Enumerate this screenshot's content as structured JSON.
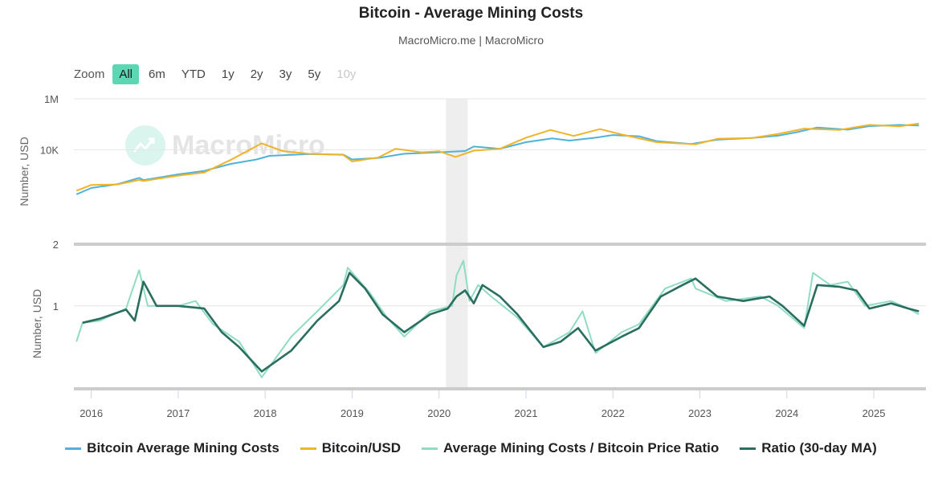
{
  "title": "Bitcoin - Average Mining Costs",
  "subtitle": "MacroMicro.me | MacroMicro",
  "watermark": "MacroMicro",
  "zoom": {
    "label": "Zoom",
    "buttons": [
      {
        "label": "All",
        "state": "active"
      },
      {
        "label": "6m",
        "state": "normal"
      },
      {
        "label": "YTD",
        "state": "normal"
      },
      {
        "label": "1y",
        "state": "normal"
      },
      {
        "label": "2y",
        "state": "normal"
      },
      {
        "label": "3y",
        "state": "normal"
      },
      {
        "label": "5y",
        "state": "normal"
      },
      {
        "label": "10y",
        "state": "disabled"
      }
    ]
  },
  "chart_data": {
    "type": "line",
    "x_ticks": [
      "2016",
      "2017",
      "2018",
      "2019",
      "2020",
      "2021",
      "2022",
      "2023",
      "2024",
      "2025"
    ],
    "highlight_band": {
      "x_start": 2020.08,
      "x_end": 2020.33
    },
    "panels": [
      {
        "ylabel": "Number, USD",
        "scale": "log",
        "ylim": [
          2,
          1000000
        ],
        "y_ticks": [
          {
            "value": 1000000,
            "label": "1M"
          },
          {
            "value": 10000,
            "label": "10K"
          },
          {
            "value": 2,
            "label": "2"
          }
        ],
        "series": [
          {
            "name": "Bitcoin Average Mining Costs",
            "color": "#4fb3d9",
            "points": [
              [
                2015.83,
                180
              ],
              [
                2016.0,
                320
              ],
              [
                2016.3,
                450
              ],
              [
                2016.55,
                800
              ],
              [
                2016.6,
                650
              ],
              [
                2017.0,
                1100
              ],
              [
                2017.3,
                1500
              ],
              [
                2017.6,
                2800
              ],
              [
                2017.9,
                4200
              ],
              [
                2018.05,
                5800
              ],
              [
                2018.5,
                6800
              ],
              [
                2018.9,
                6500
              ],
              [
                2019.0,
                4200
              ],
              [
                2019.3,
                4800
              ],
              [
                2019.6,
                7000
              ],
              [
                2020.0,
                8000
              ],
              [
                2020.3,
                9000
              ],
              [
                2020.4,
                13500
              ],
              [
                2020.7,
                11000
              ],
              [
                2021.0,
                20000
              ],
              [
                2021.3,
                28000
              ],
              [
                2021.5,
                23000
              ],
              [
                2021.8,
                30000
              ],
              [
                2022.0,
                38000
              ],
              [
                2022.3,
                34000
              ],
              [
                2022.5,
                22000
              ],
              [
                2022.9,
                17000
              ],
              [
                2023.2,
                25000
              ],
              [
                2023.6,
                29000
              ],
              [
                2023.9,
                36000
              ],
              [
                2024.1,
                48000
              ],
              [
                2024.35,
                75000
              ],
              [
                2024.7,
                62000
              ],
              [
                2024.95,
                85000
              ],
              [
                2025.3,
                95000
              ],
              [
                2025.52,
                90000
              ]
            ]
          },
          {
            "name": "Bitcoin/USD",
            "color": "#f0b429",
            "points": [
              [
                2015.83,
                250
              ],
              [
                2016.0,
                420
              ],
              [
                2016.3,
                440
              ],
              [
                2016.55,
                660
              ],
              [
                2016.6,
                600
              ],
              [
                2017.0,
                980
              ],
              [
                2017.3,
                1300
              ],
              [
                2017.6,
                4000
              ],
              [
                2017.96,
                18000
              ],
              [
                2018.2,
                9000
              ],
              [
                2018.5,
                7000
              ],
              [
                2018.9,
                6300
              ],
              [
                2019.0,
                3500
              ],
              [
                2019.3,
                5000
              ],
              [
                2019.5,
                11000
              ],
              [
                2019.8,
                8000
              ],
              [
                2020.0,
                8800
              ],
              [
                2020.19,
                5300
              ],
              [
                2020.4,
                9300
              ],
              [
                2020.7,
                11000
              ],
              [
                2021.0,
                30000
              ],
              [
                2021.28,
                60000
              ],
              [
                2021.55,
                35000
              ],
              [
                2021.85,
                65000
              ],
              [
                2022.1,
                40000
              ],
              [
                2022.5,
                20000
              ],
              [
                2022.95,
                16500
              ],
              [
                2023.2,
                27000
              ],
              [
                2023.6,
                29000
              ],
              [
                2023.9,
                42000
              ],
              [
                2024.2,
                68000
              ],
              [
                2024.6,
                60000
              ],
              [
                2024.95,
                95000
              ],
              [
                2025.3,
                84000
              ],
              [
                2025.52,
                108000
              ]
            ]
          }
        ]
      },
      {
        "ylabel": "Number, USD",
        "scale": "log",
        "ylim": [
          0.2,
          2.5
        ],
        "y_ticks": [
          {
            "value": 1,
            "label": "1"
          }
        ],
        "series": [
          {
            "name": "Average Mining Costs / Bitcoin Price Ratio",
            "color": "#8fdcc3",
            "points": [
              [
                2015.83,
                0.5
              ],
              [
                2015.9,
                0.72
              ],
              [
                2016.1,
                0.75
              ],
              [
                2016.4,
                0.95
              ],
              [
                2016.55,
                2.0
              ],
              [
                2016.65,
                1.0
              ],
              [
                2017.0,
                1.0
              ],
              [
                2017.2,
                1.1
              ],
              [
                2017.4,
                0.7
              ],
              [
                2017.7,
                0.5
              ],
              [
                2017.96,
                0.25
              ],
              [
                2018.3,
                0.55
              ],
              [
                2018.6,
                0.9
              ],
              [
                2018.9,
                1.5
              ],
              [
                2018.95,
                2.1
              ],
              [
                2019.2,
                1.3
              ],
              [
                2019.4,
                0.8
              ],
              [
                2019.6,
                0.55
              ],
              [
                2019.9,
                0.9
              ],
              [
                2020.15,
                1.0
              ],
              [
                2020.2,
                1.8
              ],
              [
                2020.28,
                2.4
              ],
              [
                2020.35,
                1.1
              ],
              [
                2020.45,
                1.5
              ],
              [
                2020.6,
                1.2
              ],
              [
                2020.9,
                0.8
              ],
              [
                2021.2,
                0.45
              ],
              [
                2021.5,
                0.6
              ],
              [
                2021.65,
                0.9
              ],
              [
                2021.8,
                0.4
              ],
              [
                2022.1,
                0.6
              ],
              [
                2022.3,
                0.7
              ],
              [
                2022.6,
                1.4
              ],
              [
                2022.9,
                1.7
              ],
              [
                2022.95,
                1.4
              ],
              [
                2023.3,
                1.1
              ],
              [
                2023.7,
                1.2
              ],
              [
                2023.9,
                1.0
              ],
              [
                2024.2,
                0.65
              ],
              [
                2024.3,
                1.9
              ],
              [
                2024.5,
                1.5
              ],
              [
                2024.7,
                1.6
              ],
              [
                2024.9,
                1.0
              ],
              [
                2025.2,
                1.1
              ],
              [
                2025.4,
                0.95
              ],
              [
                2025.52,
                0.85
              ]
            ]
          },
          {
            "name": "Ratio (30-day MA)",
            "color": "#2a6e5f",
            "points": [
              [
                2015.9,
                0.72
              ],
              [
                2016.1,
                0.78
              ],
              [
                2016.4,
                0.93
              ],
              [
                2016.5,
                0.75
              ],
              [
                2016.6,
                1.6
              ],
              [
                2016.75,
                1.0
              ],
              [
                2017.0,
                1.0
              ],
              [
                2017.3,
                0.95
              ],
              [
                2017.5,
                0.6
              ],
              [
                2017.7,
                0.45
              ],
              [
                2017.96,
                0.28
              ],
              [
                2018.3,
                0.42
              ],
              [
                2018.6,
                0.75
              ],
              [
                2018.85,
                1.1
              ],
              [
                2018.97,
                1.9
              ],
              [
                2019.15,
                1.4
              ],
              [
                2019.35,
                0.85
              ],
              [
                2019.6,
                0.6
              ],
              [
                2019.9,
                0.85
              ],
              [
                2020.1,
                0.95
              ],
              [
                2020.2,
                1.2
              ],
              [
                2020.3,
                1.35
              ],
              [
                2020.4,
                1.05
              ],
              [
                2020.5,
                1.5
              ],
              [
                2020.7,
                1.2
              ],
              [
                2020.9,
                0.85
              ],
              [
                2021.2,
                0.45
              ],
              [
                2021.4,
                0.5
              ],
              [
                2021.6,
                0.65
              ],
              [
                2021.8,
                0.42
              ],
              [
                2022.1,
                0.55
              ],
              [
                2022.3,
                0.65
              ],
              [
                2022.55,
                1.2
              ],
              [
                2022.8,
                1.5
              ],
              [
                2022.95,
                1.7
              ],
              [
                2023.2,
                1.2
              ],
              [
                2023.5,
                1.1
              ],
              [
                2023.8,
                1.2
              ],
              [
                2023.95,
                1.0
              ],
              [
                2024.2,
                0.68
              ],
              [
                2024.35,
                1.5
              ],
              [
                2024.6,
                1.45
              ],
              [
                2024.8,
                1.35
              ],
              [
                2024.95,
                0.95
              ],
              [
                2025.2,
                1.05
              ],
              [
                2025.4,
                0.95
              ],
              [
                2025.52,
                0.9
              ]
            ]
          }
        ]
      }
    ]
  }
}
